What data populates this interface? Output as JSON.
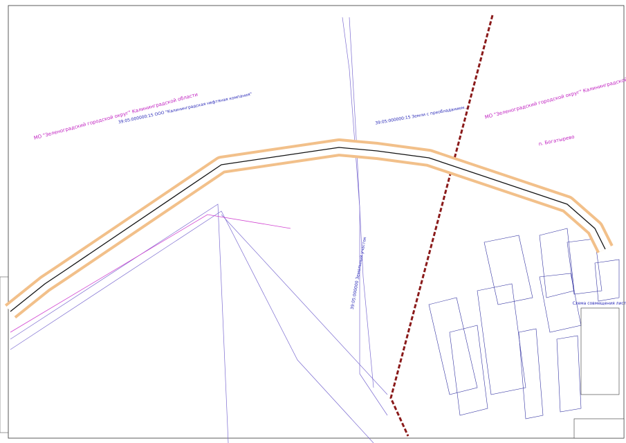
{
  "labels": [
    {
      "text": "МО \"Зеленоградский городской округ\" Калининградской области"
    },
    {
      "text": "МО \"Зеленоградский городской округ\" Калининградской области"
    },
    {
      "text": "39:05:000000:15 ООО \"Калининградская нефтяная компания\""
    },
    {
      "text": "39:05:000000:15 Земли с преобладанием..."
    },
    {
      "text": "п. Богатырево"
    },
    {
      "text": "39:05:000000 Земельный участок"
    },
    {
      "text": "Схема совмещения листов"
    }
  ]
}
